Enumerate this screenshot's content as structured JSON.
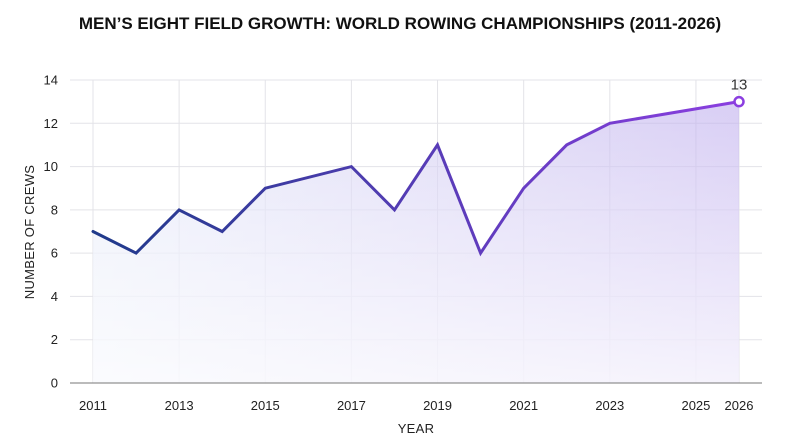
{
  "chart_data": {
    "type": "line",
    "title": "MEN’S EIGHT FIELD GROWTH: WORLD ROWING CHAMPIONSHIPS (2011-2026)",
    "xlabel": "YEAR",
    "ylabel": "NUMBER OF CREWS",
    "xlim": [
      2011,
      2026
    ],
    "ylim": [
      0,
      14
    ],
    "x_ticks": [
      2011,
      2013,
      2015,
      2017,
      2019,
      2021,
      2023,
      2025,
      2026
    ],
    "y_ticks": [
      0,
      2,
      4,
      6,
      8,
      10,
      12,
      14
    ],
    "grid": true,
    "series": [
      {
        "x": [
          2011,
          2012,
          2013,
          2014,
          2015,
          2017,
          2018,
          2019,
          2020,
          2021,
          2022,
          2023,
          2026
        ],
        "values": [
          7,
          6,
          8,
          7,
          9,
          10,
          8,
          11,
          6,
          9,
          11,
          12,
          13
        ]
      }
    ],
    "end_annotation": "13",
    "colors": {
      "line_start": "#1f3a8a",
      "line_end": "#8b3ee0",
      "fill_top": "#b9a6ec",
      "fill_bottom": "#eef1fb"
    }
  }
}
